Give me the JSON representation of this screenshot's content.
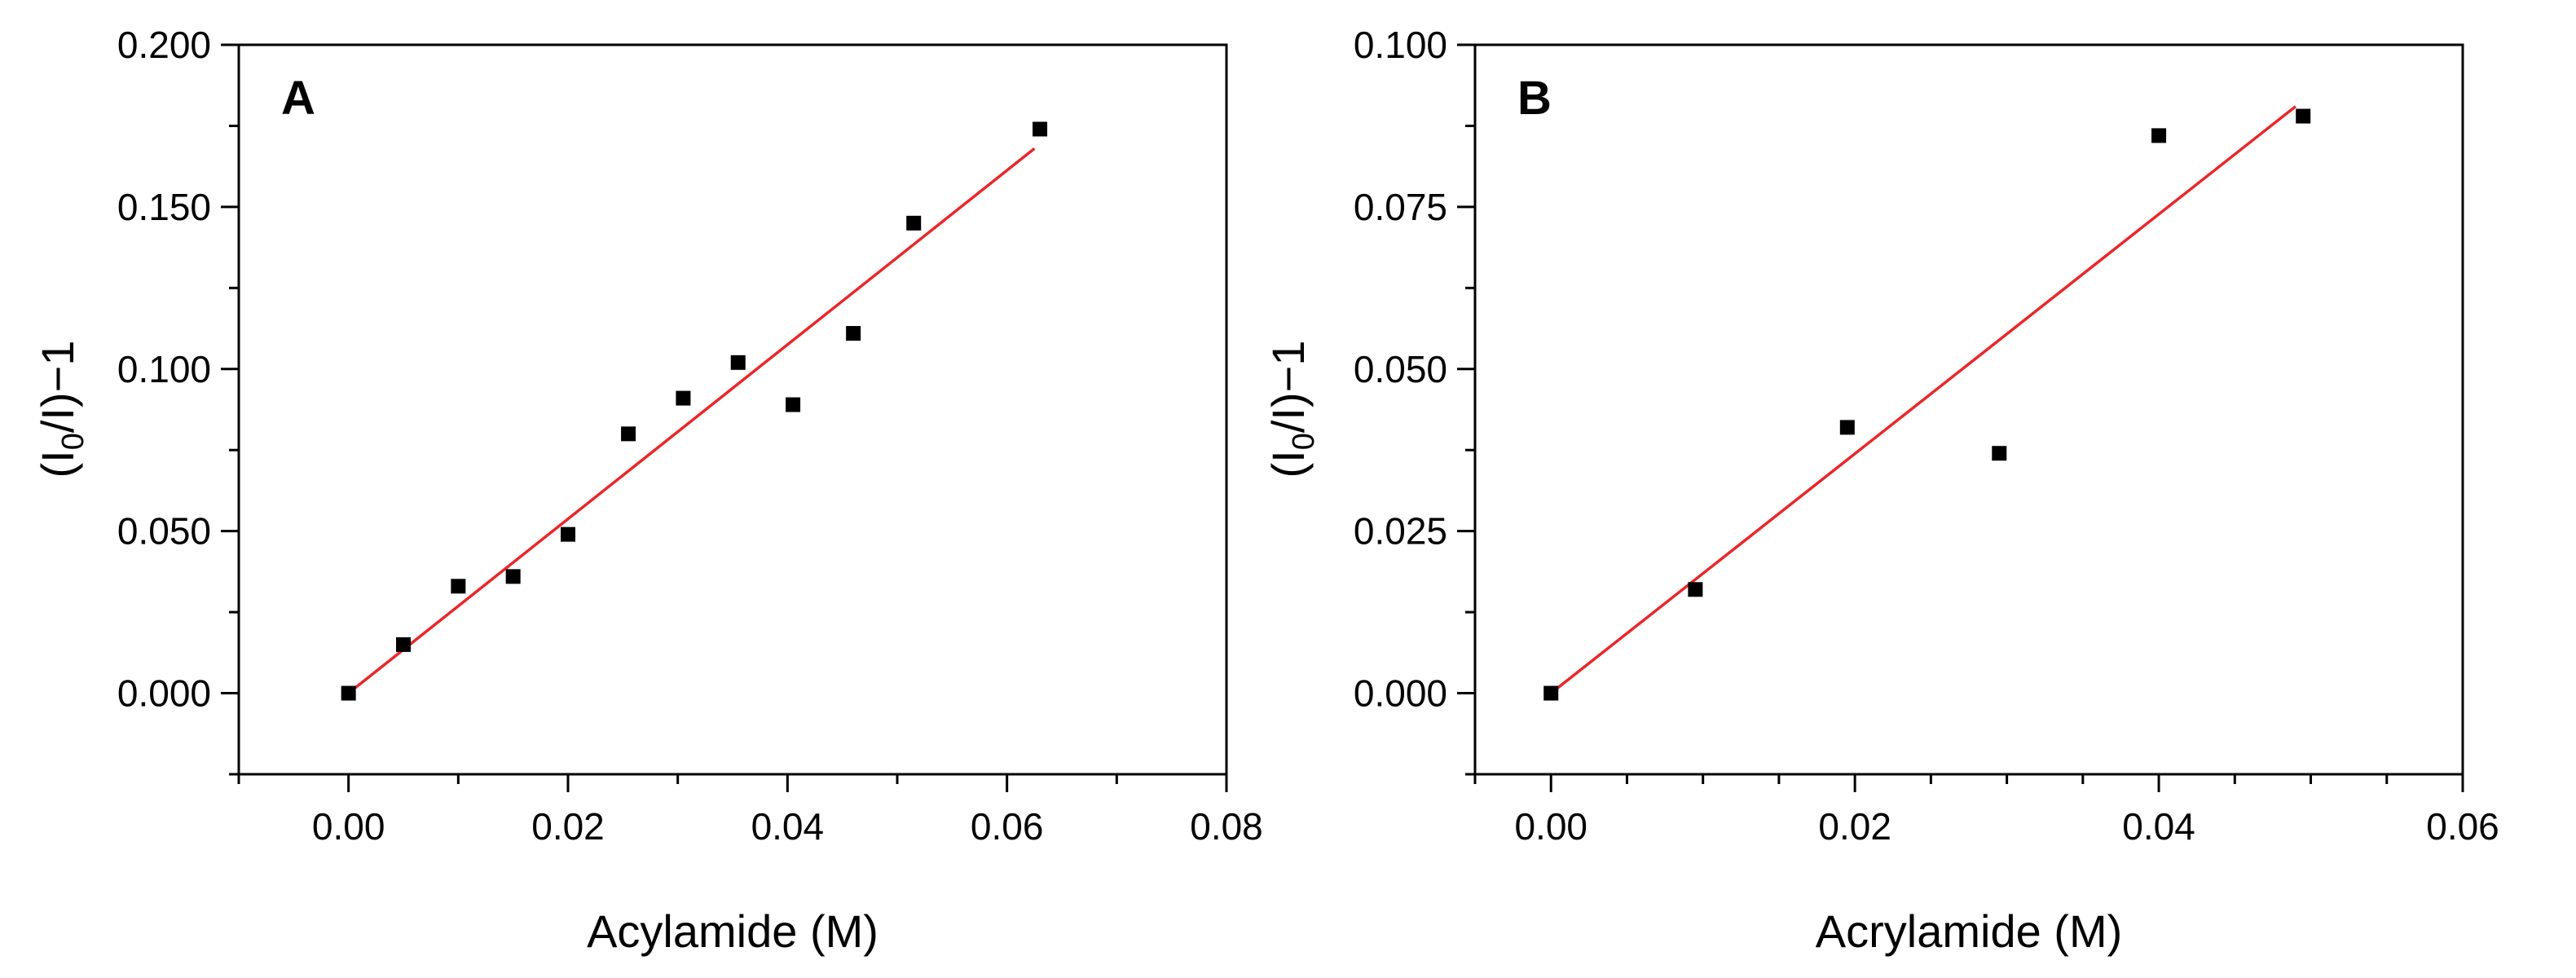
{
  "chart_data": [
    {
      "type": "scatter",
      "panel_label": "A",
      "title": "",
      "xlabel": "Acylamide (M)",
      "ylabel": "(I0/I)−1",
      "ylabel_parts": {
        "open": "(I",
        "sub": "0",
        "close": "/I)−1"
      },
      "xlim": [
        -0.01,
        0.08
      ],
      "ylim": [
        -0.025,
        0.2
      ],
      "x_ticks": [
        0.0,
        0.02,
        0.04,
        0.06,
        0.08
      ],
      "x_tick_labels": [
        "0.00",
        "0.02",
        "0.04",
        "0.06",
        "0.08"
      ],
      "x_minor_ticks": [
        -0.01,
        0.01,
        0.03,
        0.05,
        0.07
      ],
      "y_ticks": [
        0.0,
        0.05,
        0.1,
        0.15,
        0.2
      ],
      "y_tick_labels": [
        "0.000",
        "0.050",
        "0.100",
        "0.150",
        "0.200"
      ],
      "y_minor_ticks": [
        -0.025,
        0.025,
        0.075,
        0.125,
        0.175
      ],
      "grid": false,
      "series": [
        {
          "name": "data",
          "marker": "square",
          "color": "#000000",
          "x": [
            0.0,
            0.005,
            0.01,
            0.015,
            0.02,
            0.0255,
            0.0305,
            0.0355,
            0.0405,
            0.046,
            0.0515,
            0.063
          ],
          "y": [
            0.0,
            0.015,
            0.033,
            0.036,
            0.049,
            0.08,
            0.091,
            0.102,
            0.089,
            0.111,
            0.145,
            0.174
          ]
        }
      ],
      "fit_line": {
        "color": "#e8272a",
        "x": [
          0.0,
          0.0625
        ],
        "y": [
          0.0,
          0.168
        ]
      }
    },
    {
      "type": "scatter",
      "panel_label": "B",
      "title": "",
      "xlabel": "Acrylamide (M)",
      "ylabel": "(I0/I)−1",
      "ylabel_parts": {
        "open": "(I",
        "sub": "0",
        "close": "/I)−1"
      },
      "xlim": [
        -0.005,
        0.06
      ],
      "ylim": [
        -0.0125,
        0.1
      ],
      "x_ticks": [
        0.0,
        0.02,
        0.04,
        0.06
      ],
      "x_tick_labels": [
        "0.00",
        "0.02",
        "0.04",
        "0.06"
      ],
      "x_minor_ticks": [
        -0.005,
        0.005,
        0.01,
        0.015,
        0.025,
        0.03,
        0.035,
        0.045,
        0.05,
        0.055
      ],
      "y_ticks": [
        0.0,
        0.025,
        0.05,
        0.075,
        0.1
      ],
      "y_tick_labels": [
        "0.000",
        "0.025",
        "0.050",
        "0.075",
        "0.100"
      ],
      "y_minor_ticks": [
        -0.0125,
        0.0125,
        0.0375,
        0.0625,
        0.0875
      ],
      "grid": false,
      "series": [
        {
          "name": "data",
          "marker": "square",
          "color": "#000000",
          "x": [
            0.0,
            0.0095,
            0.0195,
            0.0295,
            0.04,
            0.0495
          ],
          "y": [
            0.0,
            0.016,
            0.041,
            0.037,
            0.086,
            0.089
          ]
        }
      ],
      "fit_line": {
        "color": "#e8272a",
        "x": [
          0.0,
          0.049
        ],
        "y": [
          0.0,
          0.0905
        ]
      }
    }
  ]
}
